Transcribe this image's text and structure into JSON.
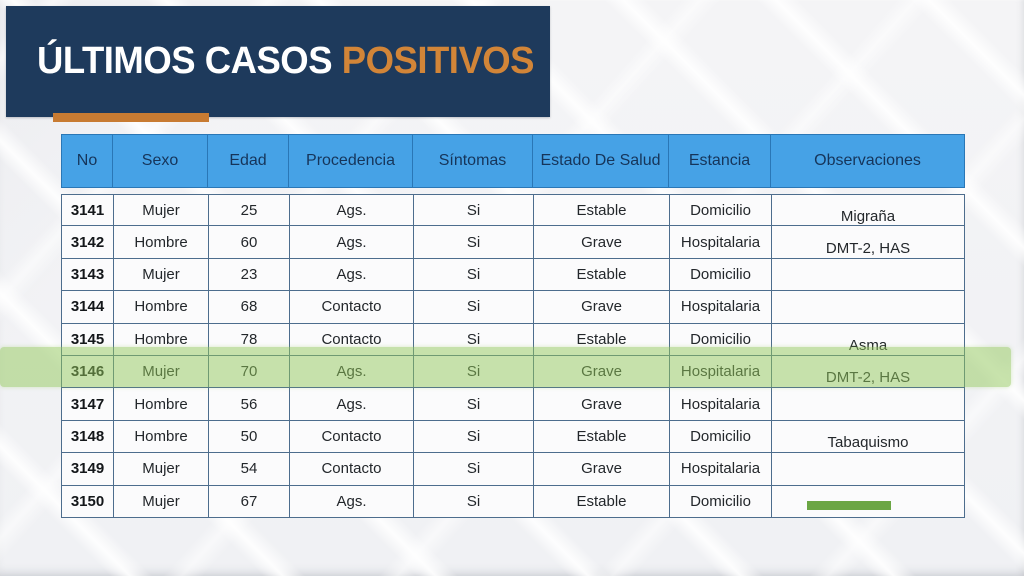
{
  "title": {
    "part1": "ÚLTIMOS CASOS ",
    "part2": "POSITIVOS"
  },
  "colors": {
    "navy": "#1e3a5c",
    "orange": "#d28538",
    "orange_bar": "#c87b32",
    "header_blue": "#46a2e6",
    "header_text": "#16355a",
    "header_border": "#2a77b6",
    "row_border": "#4d6d8d",
    "highlight_green": "#92c759",
    "highlight_green_rgba": "rgba(146,199,89,0.5)",
    "redaction_green": "#6ba644"
  },
  "table": {
    "headers": [
      "No",
      "Sexo",
      "Edad",
      "Procedencia",
      "Síntomas",
      "Estado De Salud",
      "Estancia",
      "Observaciones"
    ],
    "columns": [
      "no",
      "sexo",
      "edad",
      "procedencia",
      "sintomas",
      "estado",
      "estancia",
      "observaciones"
    ],
    "highlighted_row_no": "3146",
    "rows": [
      {
        "no": "3141",
        "sexo": "Mujer",
        "edad": "25",
        "procedencia": "Ags.",
        "sintomas": "Si",
        "estado": "Estable",
        "estancia": "Domicilio",
        "observaciones": "Migraña"
      },
      {
        "no": "3142",
        "sexo": "Hombre",
        "edad": "60",
        "procedencia": "Ags.",
        "sintomas": "Si",
        "estado": "Grave",
        "estancia": "Hospitalaria",
        "observaciones": "DMT-2, HAS"
      },
      {
        "no": "3143",
        "sexo": "Mujer",
        "edad": "23",
        "procedencia": "Ags.",
        "sintomas": "Si",
        "estado": "Estable",
        "estancia": "Domicilio",
        "observaciones": ""
      },
      {
        "no": "3144",
        "sexo": "Hombre",
        "edad": "68",
        "procedencia": "Contacto",
        "sintomas": "Si",
        "estado": "Grave",
        "estancia": "Hospitalaria",
        "observaciones": ""
      },
      {
        "no": "3145",
        "sexo": "Hombre",
        "edad": "78",
        "procedencia": "Contacto",
        "sintomas": "Si",
        "estado": "Estable",
        "estancia": "Domicilio",
        "observaciones": "Asma"
      },
      {
        "no": "3146",
        "sexo": "Mujer",
        "edad": "70",
        "procedencia": "Ags.",
        "sintomas": "Si",
        "estado": "Grave",
        "estancia": "Hospitalaria",
        "observaciones": "DMT-2, HAS"
      },
      {
        "no": "3147",
        "sexo": "Hombre",
        "edad": "56",
        "procedencia": "Ags.",
        "sintomas": "Si",
        "estado": "Grave",
        "estancia": "Hospitalaria",
        "observaciones": ""
      },
      {
        "no": "3148",
        "sexo": "Hombre",
        "edad": "50",
        "procedencia": "Contacto",
        "sintomas": "Si",
        "estado": "Estable",
        "estancia": "Domicilio",
        "observaciones": "Tabaquismo"
      },
      {
        "no": "3149",
        "sexo": "Mujer",
        "edad": "54",
        "procedencia": "Contacto",
        "sintomas": "Si",
        "estado": "Grave",
        "estancia": "Hospitalaria",
        "observaciones": ""
      },
      {
        "no": "3150",
        "sexo": "Mujer",
        "edad": "67",
        "procedencia": "Ags.",
        "sintomas": "Si",
        "estado": "Estable",
        "estancia": "Domicilio",
        "observaciones": "",
        "redaction_bar": true
      }
    ]
  }
}
